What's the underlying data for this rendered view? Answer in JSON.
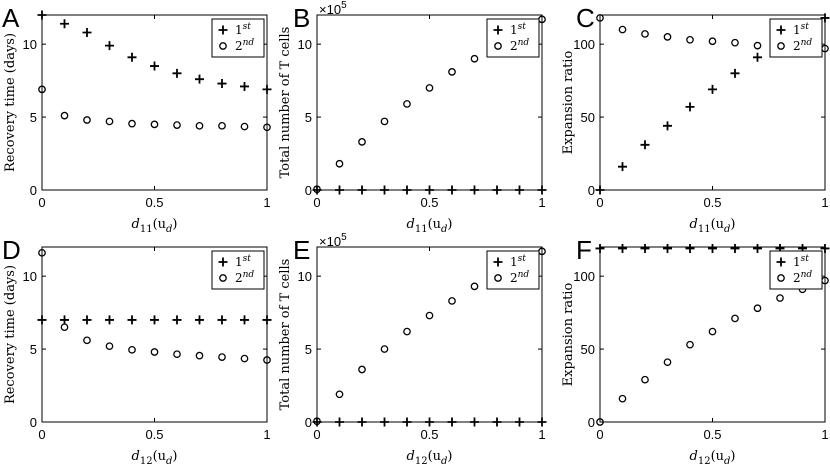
{
  "chart_data": [
    {
      "type": "scatter",
      "panel": "A",
      "xlabel": "d",
      "xlabel_sub": "11",
      "xlabel_arg": "(u",
      "xlabel_arg_sub": "d",
      "xlabel_close": ")",
      "ylabel": "Recovery time (days)",
      "xlim": [
        0,
        1
      ],
      "ylim": [
        0,
        12
      ],
      "xticks": [
        0,
        0.5,
        1
      ],
      "xtick_labels": [
        "0",
        "0.5",
        "1"
      ],
      "yticks": [
        0,
        5,
        10
      ],
      "ytick_labels": [
        "0",
        "5",
        "10"
      ],
      "legend_position": "top-right",
      "series": [
        {
          "name": "1",
          "name_sup": "st",
          "marker": "plus",
          "x": [
            0,
            0.1,
            0.2,
            0.3,
            0.4,
            0.5,
            0.6,
            0.7,
            0.8,
            0.9,
            1
          ],
          "y": [
            12,
            11.4,
            10.8,
            9.9,
            9.1,
            8.5,
            8.0,
            7.6,
            7.3,
            7.1,
            6.9
          ]
        },
        {
          "name": "2",
          "name_sup": "nd",
          "marker": "circle",
          "x": [
            0,
            0.1,
            0.2,
            0.3,
            0.4,
            0.5,
            0.6,
            0.7,
            0.8,
            0.9,
            1
          ],
          "y": [
            6.9,
            5.1,
            4.8,
            4.7,
            4.55,
            4.5,
            4.45,
            4.4,
            4.4,
            4.35,
            4.3
          ]
        }
      ]
    },
    {
      "type": "scatter",
      "panel": "B",
      "xlabel": "d",
      "xlabel_sub": "11",
      "xlabel_arg": "(u",
      "xlabel_arg_sub": "d",
      "xlabel_close": ")",
      "ylabel": "Total number of T cells",
      "sci_base": "×10",
      "sci_exp": "5",
      "xlim": [
        0,
        1
      ],
      "ylim": [
        0,
        12
      ],
      "xticks": [
        0,
        0.5,
        1
      ],
      "xtick_labels": [
        "0",
        "0.5",
        "1"
      ],
      "yticks": [
        0,
        5,
        10
      ],
      "ytick_labels": [
        "0",
        "5",
        "10"
      ],
      "legend_position": "top-right",
      "series": [
        {
          "name": "1",
          "name_sup": "st",
          "marker": "plus",
          "x": [
            0,
            0.1,
            0.2,
            0.3,
            0.4,
            0.5,
            0.6,
            0.7,
            0.8,
            0.9,
            1
          ],
          "y": [
            0,
            0,
            0,
            0,
            0,
            0,
            0,
            0,
            0,
            0,
            0
          ]
        },
        {
          "name": "2",
          "name_sup": "nd",
          "marker": "circle",
          "x": [
            0,
            0.1,
            0.2,
            0.3,
            0.4,
            0.5,
            0.6,
            0.7,
            1
          ],
          "y": [
            0.05,
            1.8,
            3.3,
            4.7,
            5.9,
            7.0,
            8.1,
            9.0,
            11.7
          ]
        }
      ]
    },
    {
      "type": "scatter",
      "panel": "C",
      "xlabel": "d",
      "xlabel_sub": "11",
      "xlabel_arg": "(u",
      "xlabel_arg_sub": "d",
      "xlabel_close": ")",
      "ylabel": "Expansion ratio",
      "xlim": [
        0,
        1
      ],
      "ylim": [
        0,
        120
      ],
      "xticks": [
        0,
        0.5,
        1
      ],
      "xtick_labels": [
        "0",
        "0.5",
        "1"
      ],
      "yticks": [
        0,
        50,
        100
      ],
      "ytick_labels": [
        "0",
        "50",
        "100"
      ],
      "legend_position": "top-right",
      "series": [
        {
          "name": "1",
          "name_sup": "st",
          "marker": "plus",
          "x": [
            0,
            0.1,
            0.2,
            0.3,
            0.4,
            0.5,
            0.6,
            0.7,
            1
          ],
          "y": [
            0,
            16,
            31,
            44,
            57,
            69,
            80,
            91,
            118
          ]
        },
        {
          "name": "2",
          "name_sup": "nd",
          "marker": "circle",
          "x": [
            0,
            0.1,
            0.2,
            0.3,
            0.4,
            0.5,
            0.6,
            0.7,
            1
          ],
          "y": [
            118,
            110,
            107,
            105,
            103,
            102,
            101,
            99,
            97
          ]
        }
      ]
    },
    {
      "type": "scatter",
      "panel": "D",
      "xlabel": "d",
      "xlabel_sub": "12",
      "xlabel_arg": "(u",
      "xlabel_arg_sub": "d",
      "xlabel_close": ")",
      "ylabel": "Recovery time (days)",
      "xlim": [
        0,
        1
      ],
      "ylim": [
        0,
        12
      ],
      "xticks": [
        0,
        0.5,
        1
      ],
      "xtick_labels": [
        "0",
        "0.5",
        "1"
      ],
      "yticks": [
        0,
        5,
        10
      ],
      "ytick_labels": [
        "0",
        "5",
        "10"
      ],
      "legend_position": "top-right",
      "series": [
        {
          "name": "1",
          "name_sup": "st",
          "marker": "plus",
          "x": [
            0,
            0.1,
            0.2,
            0.3,
            0.4,
            0.5,
            0.6,
            0.7,
            0.8,
            0.9,
            1
          ],
          "y": [
            7,
            7,
            7,
            7,
            7,
            7,
            7,
            7,
            7,
            7,
            7
          ]
        },
        {
          "name": "2",
          "name_sup": "nd",
          "marker": "circle",
          "x": [
            0,
            0.1,
            0.2,
            0.3,
            0.4,
            0.5,
            0.6,
            0.7,
            0.8,
            0.9,
            1
          ],
          "y": [
            11.6,
            6.5,
            5.6,
            5.2,
            4.95,
            4.8,
            4.65,
            4.55,
            4.45,
            4.35,
            4.25
          ]
        }
      ]
    },
    {
      "type": "scatter",
      "panel": "E",
      "xlabel": "d",
      "xlabel_sub": "12",
      "xlabel_arg": "(u",
      "xlabel_arg_sub": "d",
      "xlabel_close": ")",
      "ylabel": "Total number of T cells",
      "sci_base": "×10",
      "sci_exp": "5",
      "xlim": [
        0,
        1
      ],
      "ylim": [
        0,
        12
      ],
      "xticks": [
        0,
        0.5,
        1
      ],
      "xtick_labels": [
        "0",
        "0.5",
        "1"
      ],
      "yticks": [
        0,
        5,
        10
      ],
      "ytick_labels": [
        "0",
        "5",
        "10"
      ],
      "legend_position": "top-right",
      "series": [
        {
          "name": "1",
          "name_sup": "st",
          "marker": "plus",
          "x": [
            0,
            0.1,
            0.2,
            0.3,
            0.4,
            0.5,
            0.6,
            0.7,
            0.8,
            0.9,
            1
          ],
          "y": [
            0,
            0,
            0,
            0,
            0,
            0,
            0,
            0,
            0,
            0,
            0
          ]
        },
        {
          "name": "2",
          "name_sup": "nd",
          "marker": "circle",
          "x": [
            0,
            0.1,
            0.2,
            0.3,
            0.4,
            0.5,
            0.6,
            0.7,
            1
          ],
          "y": [
            0.05,
            1.9,
            3.6,
            5.0,
            6.2,
            7.3,
            8.3,
            9.3,
            11.7
          ]
        }
      ]
    },
    {
      "type": "scatter",
      "panel": "F",
      "xlabel": "d",
      "xlabel_sub": "12",
      "xlabel_arg": "(u",
      "xlabel_arg_sub": "d",
      "xlabel_close": ")",
      "ylabel": "Expansion ratio",
      "xlim": [
        0,
        1
      ],
      "ylim": [
        0,
        120
      ],
      "xticks": [
        0,
        0.5,
        1
      ],
      "xtick_labels": [
        "0",
        "0.5",
        "1"
      ],
      "yticks": [
        0,
        50,
        100
      ],
      "ytick_labels": [
        "0",
        "50",
        "100"
      ],
      "legend_position": "top-right",
      "series": [
        {
          "name": "1",
          "name_sup": "st",
          "marker": "plus",
          "x": [
            0,
            0.1,
            0.2,
            0.3,
            0.4,
            0.5,
            0.6,
            0.7,
            0.8,
            0.9,
            1
          ],
          "y": [
            119,
            119,
            119,
            119,
            119,
            119,
            119,
            119,
            119,
            119,
            119
          ]
        },
        {
          "name": "2",
          "name_sup": "nd",
          "marker": "circle",
          "x": [
            0,
            0.1,
            0.2,
            0.3,
            0.4,
            0.5,
            0.6,
            0.7,
            0.8,
            0.9,
            1
          ],
          "y": [
            0,
            16,
            29,
            41,
            53,
            62,
            71,
            78,
            85,
            91,
            97
          ]
        }
      ]
    }
  ]
}
